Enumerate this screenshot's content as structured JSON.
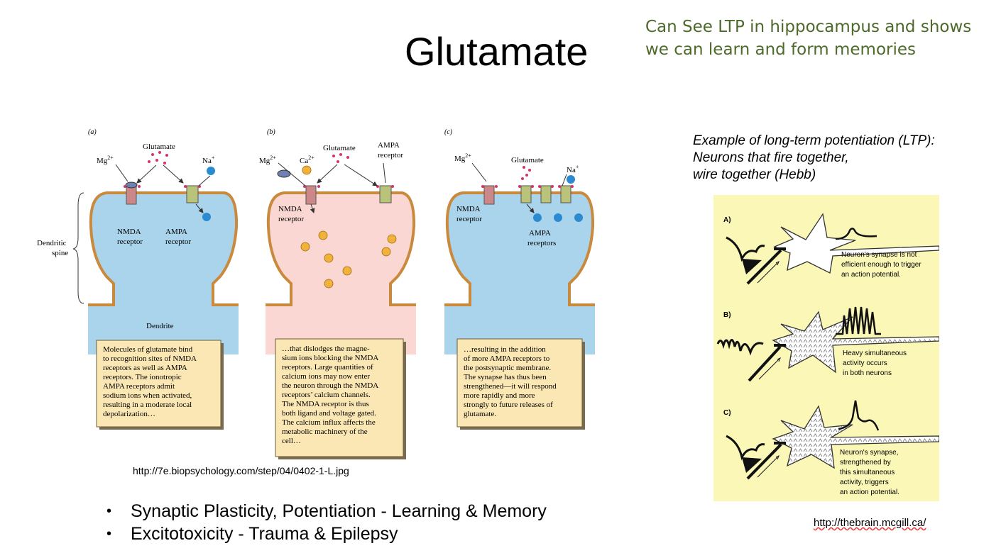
{
  "title": "Glutamate",
  "note": {
    "line1": "Can See LTP in hippocampus and shows",
    "line2": "we can learn and form memories"
  },
  "figure_left": {
    "panel_labels": [
      "(a)",
      "(b)",
      "(c)"
    ],
    "dendritic_spine": [
      "Dendritic",
      "spine"
    ],
    "dendrite": "Dendrite",
    "a": {
      "mg": "Mg",
      "mg_sup": "2+",
      "glutamate": "Glutamate",
      "na": "Na",
      "na_sup": "+",
      "nmda": [
        "NMDA",
        "receptor"
      ],
      "ampa": [
        "AMPA",
        "receptor"
      ],
      "text": [
        "Molecules of glutamate bind",
        "to recognition sites of NMDA",
        "receptors as well as AMPA",
        "receptors. The ionotropic",
        "AMPA receptors admit",
        "sodium ions when activated,",
        "resulting in a moderate local",
        "depolarization…"
      ]
    },
    "b": {
      "mg": "Mg",
      "mg_sup": "2+",
      "ca": "Ca",
      "ca_sup": "2+",
      "glutamate": "Glutamate",
      "ampa_top": [
        "AMPA",
        "receptor"
      ],
      "nmda": [
        "NMDA",
        "receptor"
      ],
      "text": [
        "…that dislodges the magne-",
        "sium ions blocking the NMDA",
        "receptors. Large quantities of",
        "calcium ions may now enter",
        "the neuron through the NMDA",
        "receptors’ calcium channels.",
        "The NMDA receptor is thus",
        "both ligand and voltage gated.",
        "The calcium influx affects the",
        "metabolic machinery of the",
        "cell…"
      ]
    },
    "c": {
      "mg": "Mg",
      "mg_sup": "2+",
      "glutamate": "Glutamate",
      "na": "Na",
      "na_sup": "+",
      "nmda": [
        "NMDA",
        "receptor"
      ],
      "ampa": [
        "AMPA",
        "receptors"
      ],
      "text": [
        "…resulting in the addition",
        "of more AMPA receptors to",
        "the postsynaptic membrane.",
        "The synapse has thus been",
        "strengthened—it will respond",
        "more rapidly and more",
        "strongly to future releases of",
        "glutamate."
      ]
    }
  },
  "caption_left": "http://7e.biopsychology.com/step/04/0402-1-L.jpg",
  "bullets": [
    "Synaptic Plasticity, Potentiation - Learning & Memory",
    "Excitotoxicity - Trauma & Epilepsy"
  ],
  "ltp_heading": {
    "line1": "Example of long-term potentiation (LTP):",
    "line2": "Neurons that fire together,",
    "line3": "wire together (Hebb)"
  },
  "figure_right": {
    "labels": [
      "A)",
      "B)",
      "C)"
    ],
    "a_text": [
      "Neuron's synapse is not",
      "efficient enough to trigger",
      "an action potential."
    ],
    "b_text": [
      "Heavy simultaneous",
      "activity occurs",
      "in both neurons"
    ],
    "c_text": [
      "Neuron's synapse,",
      "strengthened by",
      "this simultaneous",
      "activity, triggers",
      "an action potential."
    ]
  },
  "caption_right": "http://thebrain.mcgill.ca/",
  "colors": {
    "note": "#4e6a2b",
    "blue_fill": "#a9d4ec",
    "pink_fill": "#fad7d2",
    "membrane": "#c98a3e",
    "textbox": "#fbe7b4",
    "right_bg": "#fbf7b7"
  }
}
